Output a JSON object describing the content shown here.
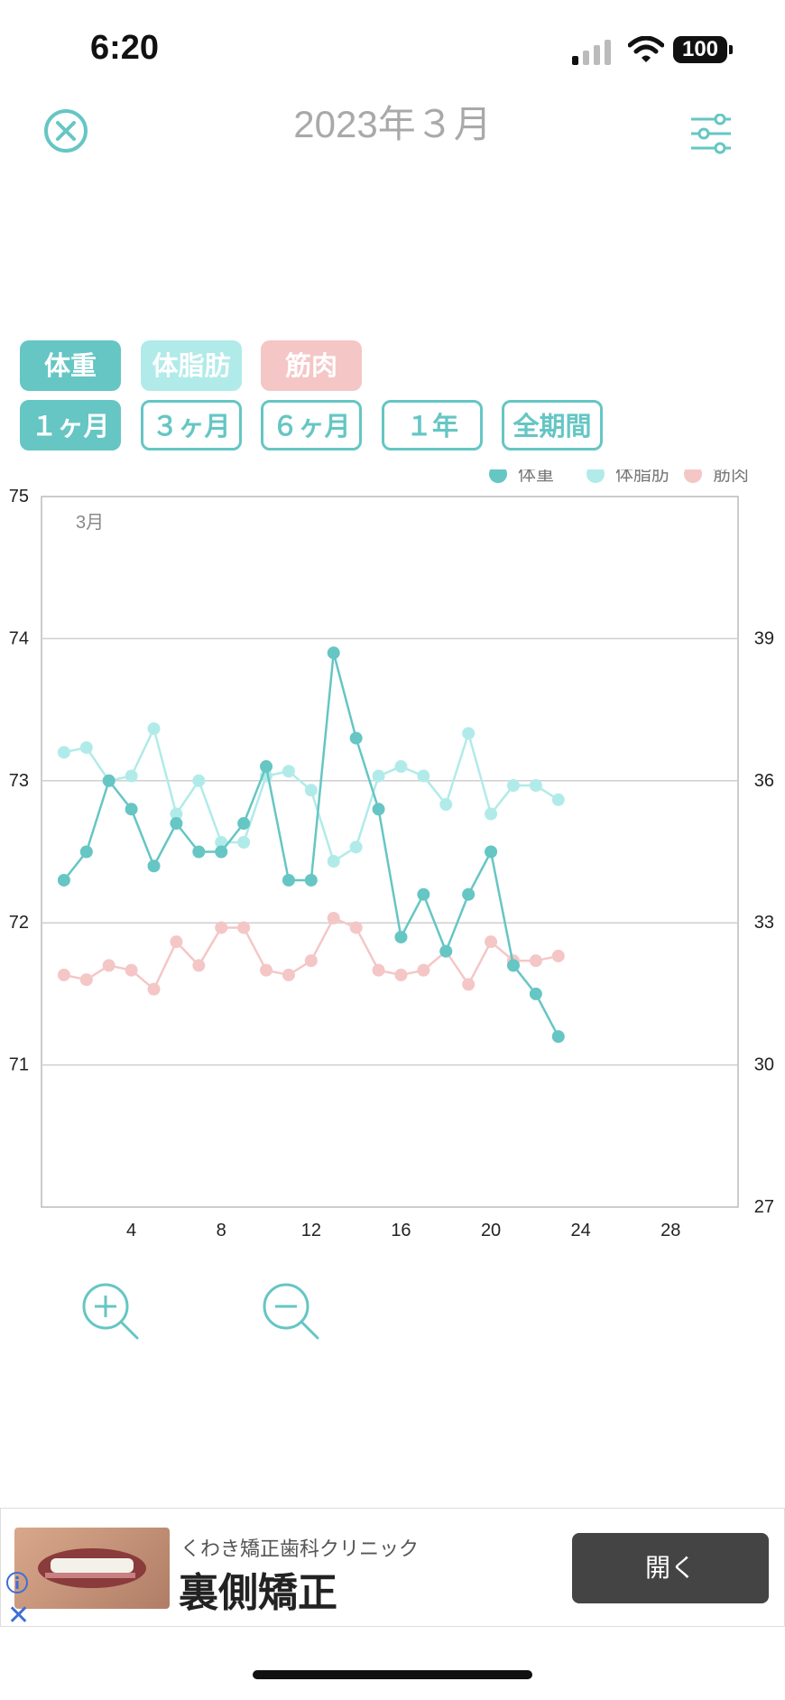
{
  "status_bar": {
    "time": "6:20",
    "battery": "100"
  },
  "header": {
    "title": "2023年３月"
  },
  "metric_tabs": [
    {
      "label": "体重",
      "color": "#65c6c4"
    },
    {
      "label": "体脂肪",
      "color": "#b0ebe9"
    },
    {
      "label": "筋肉",
      "color": "#f5c6c6"
    }
  ],
  "period_tabs": [
    "１ヶ月",
    "３ヶ月",
    "６ヶ月",
    "１年",
    "全期間"
  ],
  "active_period": "１ヶ月",
  "chart_data": {
    "type": "line",
    "month_label": "3月",
    "legend": [
      "体重",
      "体脂肪",
      "筋肉"
    ],
    "legend_position": "top-right",
    "xlim": [
      0,
      31
    ],
    "x_ticks": [
      4,
      8,
      12,
      16,
      20,
      24,
      28
    ],
    "ylim_left": [
      70,
      75
    ],
    "y_ticks_left": [
      71,
      72,
      73,
      74,
      75
    ],
    "ylim_right": [
      27,
      42
    ],
    "y_ticks_right": [
      27,
      30,
      33,
      36,
      39
    ],
    "grid": true,
    "series": [
      {
        "name": "体重",
        "axis": "left",
        "color": "#65c6c4",
        "x": [
          1,
          2,
          3,
          4,
          5,
          6,
          7,
          8,
          9,
          10,
          11,
          12,
          13,
          14,
          15,
          16,
          17,
          18,
          19,
          20,
          21,
          22,
          23
        ],
        "y": [
          72.3,
          72.5,
          73.0,
          72.8,
          72.4,
          72.7,
          72.5,
          72.5,
          72.7,
          73.1,
          72.3,
          72.3,
          73.9,
          73.3,
          72.8,
          71.9,
          72.2,
          71.8,
          72.2,
          72.5,
          71.7,
          71.5,
          71.2
        ]
      },
      {
        "name": "体脂肪",
        "axis": "right",
        "color": "#b0ebe9",
        "x": [
          1,
          2,
          3,
          4,
          5,
          6,
          7,
          8,
          9,
          10,
          11,
          12,
          13,
          14,
          15,
          16,
          17,
          18,
          19,
          20,
          21,
          22,
          23
        ],
        "y": [
          36.6,
          36.7,
          36.0,
          36.1,
          37.1,
          35.3,
          36.0,
          34.7,
          34.7,
          36.1,
          36.2,
          35.8,
          34.3,
          34.6,
          36.1,
          36.3,
          36.1,
          35.5,
          37.0,
          35.3,
          35.9,
          35.9,
          35.6
        ]
      },
      {
        "name": "筋肉",
        "axis": "right",
        "color": "#f5c6c6",
        "x": [
          1,
          2,
          3,
          4,
          5,
          6,
          7,
          8,
          9,
          10,
          11,
          12,
          13,
          14,
          15,
          16,
          17,
          18,
          19,
          20,
          21,
          22,
          23
        ],
        "y": [
          31.9,
          31.8,
          32.1,
          32.0,
          31.6,
          32.6,
          32.1,
          32.9,
          32.9,
          32.0,
          31.9,
          32.2,
          33.1,
          32.9,
          32.0,
          31.9,
          32.0,
          32.4,
          31.7,
          32.6,
          32.2,
          32.2,
          32.3
        ]
      }
    ]
  },
  "ad": {
    "sponsor": "くわき矯正歯科クリニック",
    "title": "裏側矯正",
    "button": "開く"
  }
}
